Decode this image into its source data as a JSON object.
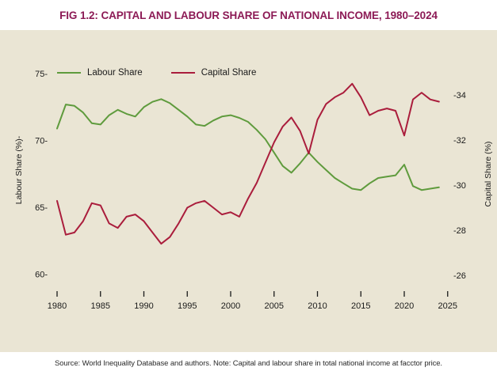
{
  "title": "FIG 1.2: CAPITAL AND LABOUR SHARE OF NATIONAL INCOME, 1980–2024",
  "source_note": "Source: World Inequality Database and authors. Note: Capital and labour share in total national income at facctor price.",
  "colors": {
    "title": "#8c1a55",
    "panel_background": "#eae5d4",
    "labour_line": "#5f9b3d",
    "capital_line": "#aa1d3c",
    "axis_text": "#1a1a1a"
  },
  "legend": {
    "labour_label": "Labour Share",
    "capital_label": "Capital Share"
  },
  "left_axis": {
    "title": "Labour Share (%)-",
    "tick_values": [
      75,
      70,
      65,
      60
    ],
    "tick_labels": [
      "75-",
      "70-",
      "65-",
      "60-"
    ]
  },
  "right_axis": {
    "title": "Capital Share (%)",
    "tick_values": [
      34,
      32,
      30,
      28,
      26
    ],
    "tick_labels": [
      "-34",
      "-32",
      "-30",
      "-28",
      "-26"
    ]
  },
  "x_axis": {
    "tick_values": [
      1980,
      1985,
      1990,
      1995,
      2000,
      2005,
      2010,
      2015,
      2020,
      2025
    ],
    "tick_labels": [
      "1980",
      "1985",
      "1990",
      "1995",
      "2000",
      "2005",
      "2010",
      "2015",
      "2020",
      "2025"
    ]
  },
  "chart_data": {
    "type": "line",
    "title": "FIG 1.2: CAPITAL AND LABOUR SHARE OF NATIONAL INCOME, 1980–2024",
    "x": [
      1980,
      1981,
      1982,
      1983,
      1984,
      1985,
      1986,
      1987,
      1988,
      1989,
      1990,
      1991,
      1992,
      1993,
      1994,
      1995,
      1996,
      1997,
      1998,
      1999,
      2000,
      2001,
      2002,
      2003,
      2004,
      2005,
      2006,
      2007,
      2008,
      2009,
      2010,
      2011,
      2012,
      2013,
      2014,
      2015,
      2016,
      2017,
      2018,
      2019,
      2020,
      2021,
      2022,
      2023,
      2024
    ],
    "series": [
      {
        "name": "Labour Share",
        "axis": "left",
        "color": "#5f9b3d",
        "values": [
          70.9,
          72.7,
          72.6,
          72.1,
          71.3,
          71.2,
          71.9,
          72.3,
          72.0,
          71.8,
          72.5,
          72.9,
          73.1,
          72.8,
          72.3,
          71.8,
          71.2,
          71.1,
          71.5,
          71.8,
          71.9,
          71.7,
          71.4,
          70.8,
          70.1,
          69.1,
          68.1,
          67.6,
          68.3,
          69.1,
          68.4,
          67.8,
          67.2,
          66.8,
          66.4,
          66.3,
          66.8,
          67.2,
          67.3,
          67.4,
          68.2,
          66.6,
          66.3,
          66.4,
          66.5
        ]
      },
      {
        "name": "Capital Share",
        "axis": "right",
        "color": "#aa1d3c",
        "values": [
          29.3,
          27.8,
          27.9,
          28.4,
          29.2,
          29.1,
          28.3,
          28.1,
          28.6,
          28.7,
          28.4,
          27.9,
          27.4,
          27.7,
          28.3,
          29.0,
          29.2,
          29.3,
          29.0,
          28.7,
          28.8,
          28.6,
          29.4,
          30.1,
          31.0,
          31.9,
          32.6,
          33.0,
          32.4,
          31.4,
          32.9,
          33.6,
          33.9,
          34.1,
          34.5,
          33.9,
          33.1,
          33.3,
          33.4,
          33.3,
          32.2,
          33.8,
          34.1,
          33.8,
          33.7
        ]
      }
    ],
    "xlabel": "",
    "ylabel_left": "Labour Share (%)",
    "ylabel_right": "Capital Share (%)",
    "ylim_left": [
      59.5,
      75.5
    ],
    "ylim_right": [
      25.5,
      34.7
    ],
    "grid": false,
    "legend_position": "top-left"
  }
}
